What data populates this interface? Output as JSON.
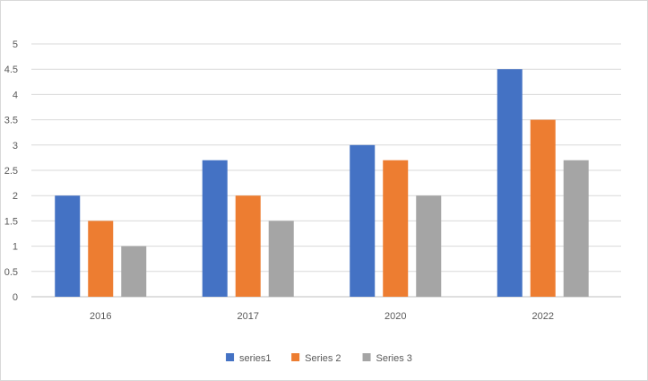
{
  "chart_data": {
    "type": "bar",
    "title": "",
    "xlabel": "",
    "ylabel": "",
    "categories": [
      "2016",
      "2017",
      "2020",
      "2022"
    ],
    "series": [
      {
        "name": "series1",
        "color": "#4472c4",
        "values": [
          2,
          2.7,
          3,
          4.5
        ]
      },
      {
        "name": "Series 2",
        "color": "#ed7d31",
        "values": [
          1.5,
          2,
          2.7,
          3.5
        ]
      },
      {
        "name": "Series 3",
        "color": "#a5a5a5",
        "values": [
          1,
          1.5,
          2,
          2.7
        ]
      }
    ],
    "ylim": [
      0,
      5
    ],
    "yticks": [
      "0",
      "0.5",
      "1",
      "1.5",
      "2",
      "2.5",
      "3",
      "3.5",
      "4",
      "4.5",
      "5"
    ],
    "grid": true,
    "legend_position": "bottom"
  }
}
